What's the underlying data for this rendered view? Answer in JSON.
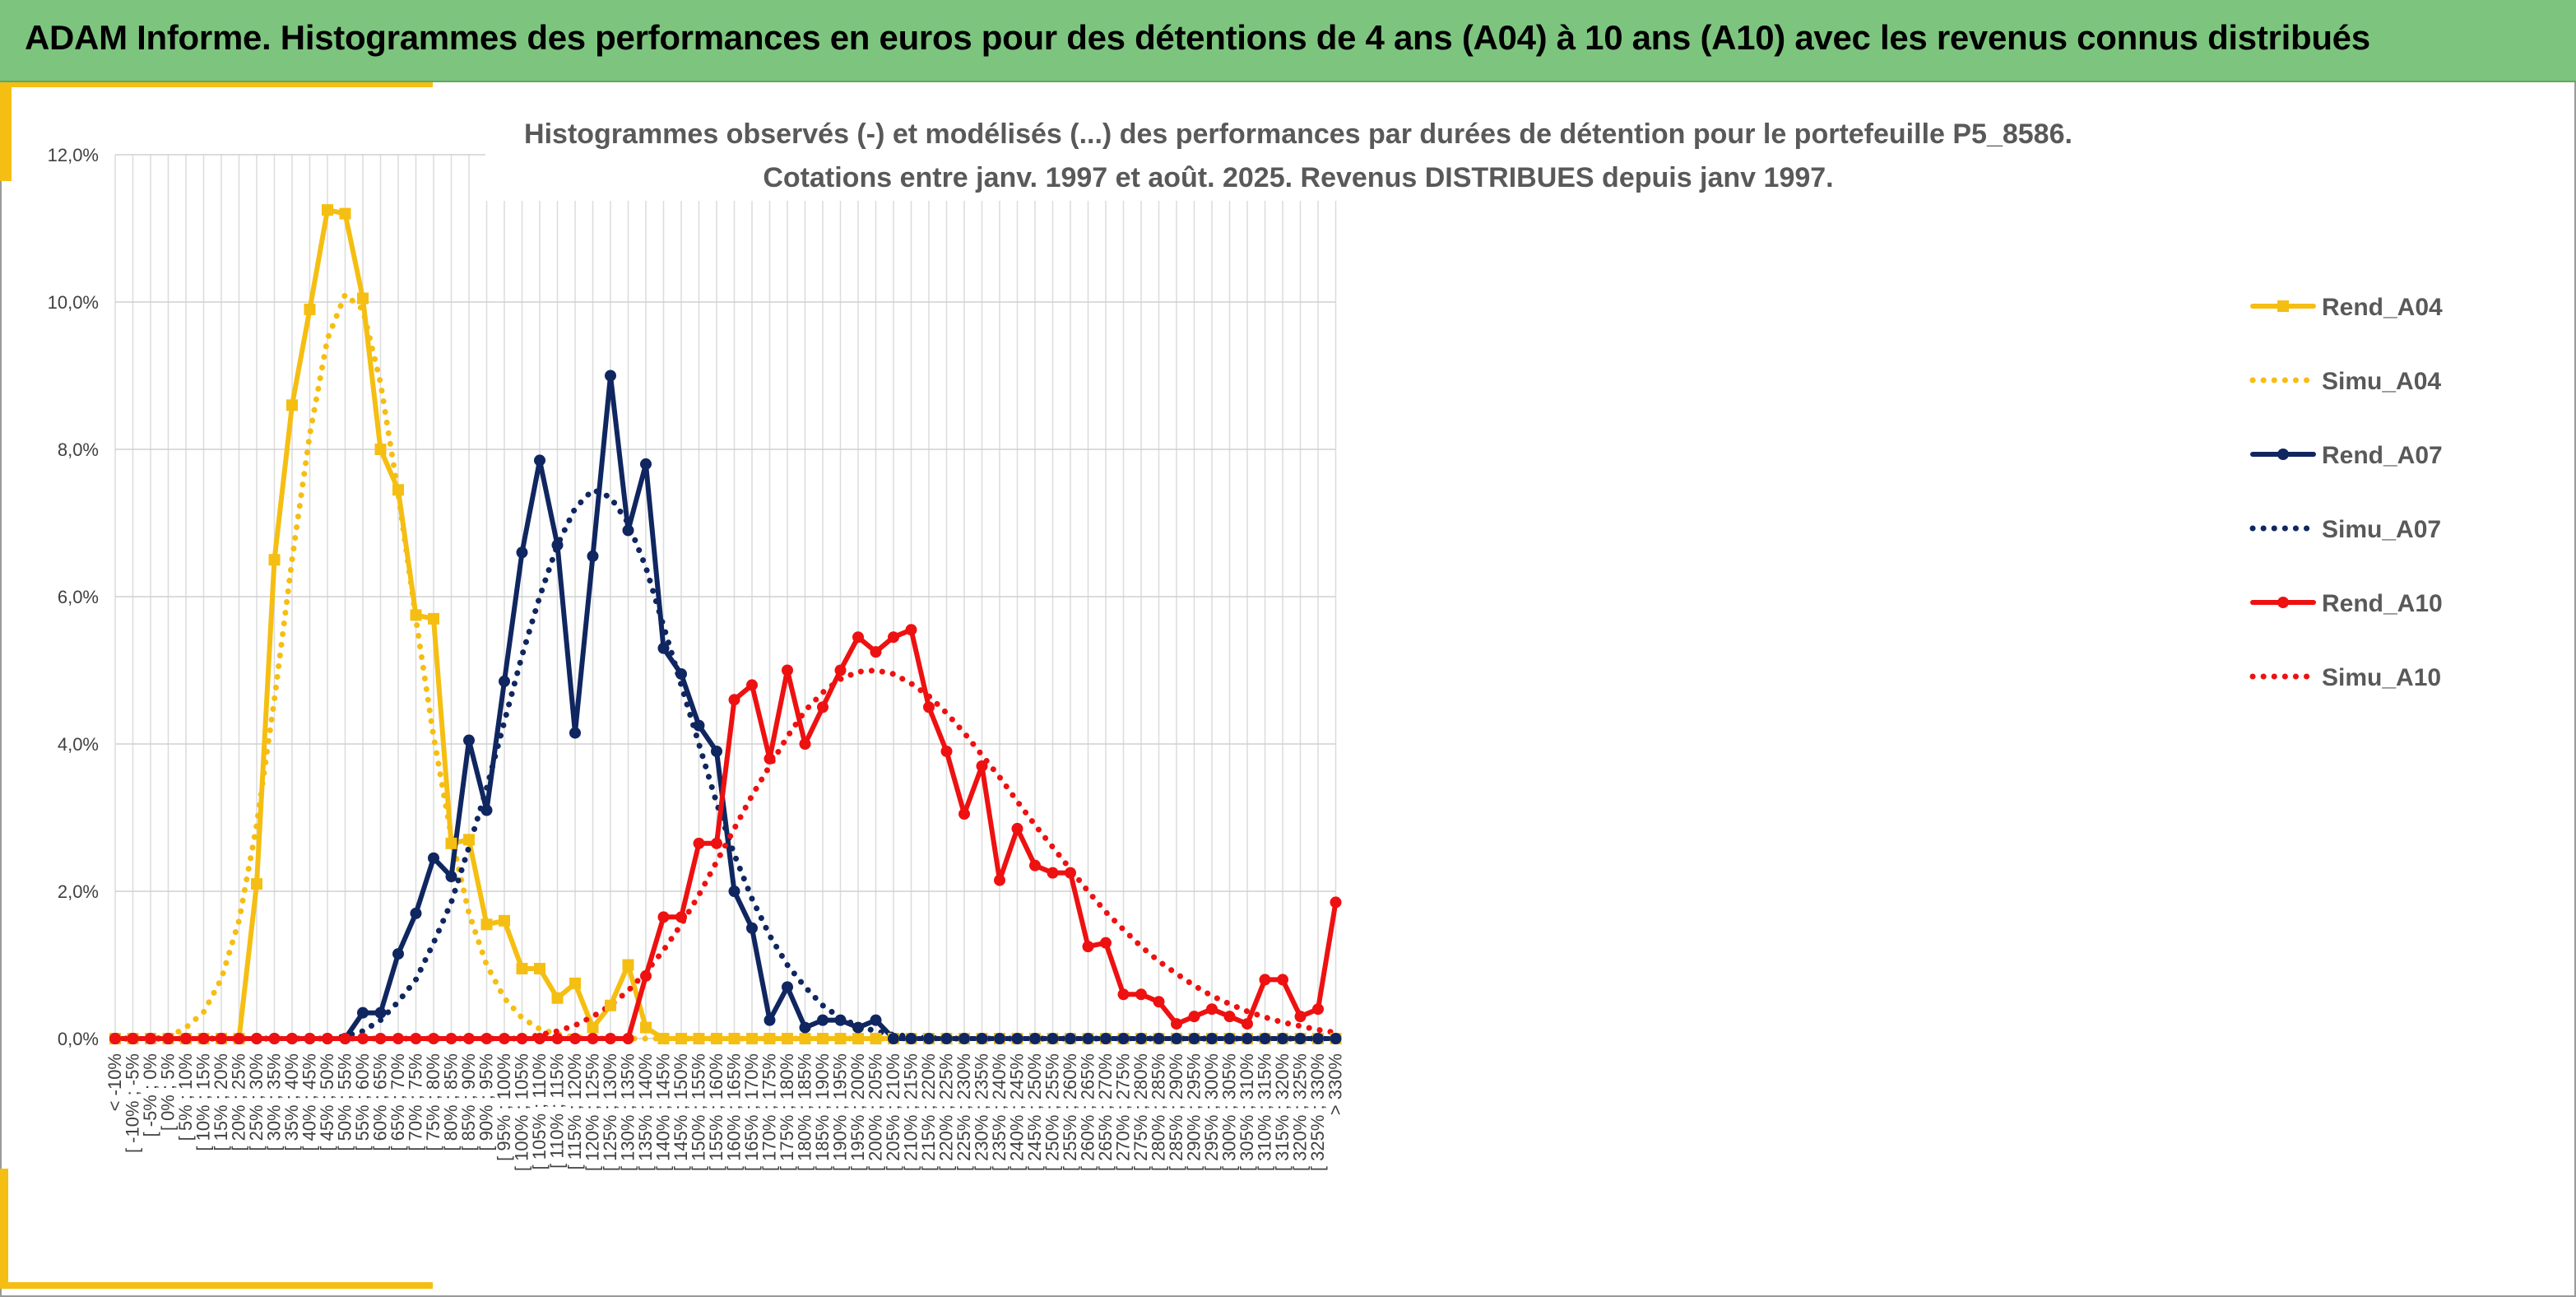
{
  "banner": {
    "title": "ADAM Informe. Histogrammes des performances en euros pour des détentions de 4 ans (A04) à 10 ans (A10) avec les revenus connus distribués",
    "color": "#7DC57F"
  },
  "chart_data": {
    "type": "line",
    "title": "Histogrammes observés (-) et modélisés (...) des performances par durées de détention pour le portefeuille P5_8586.",
    "subtitle": "Cotations entre janv. 1997 et août. 2025. Revenus DISTRIBUES depuis janv 1997.",
    "ylim": [
      0,
      12
    ],
    "yticks": [
      "0,0%",
      "2,0%",
      "4,0%",
      "6,0%",
      "8,0%",
      "10,0%",
      "12,0%"
    ],
    "grid": true,
    "legend_position": "right",
    "categories": [
      "< -10%",
      "[ -10% ; -5%",
      "[ -5% ; 0%",
      "[ 0% ; 5%",
      "[ 5% ; 10%",
      "[ 10% ; 15%",
      "[ 15% ; 20%",
      "[ 20% ; 25%",
      "[ 25% ; 30%",
      "[ 30% ; 35%",
      "[ 35% ; 40%",
      "[ 40% ; 45%",
      "[ 45% ; 50%",
      "[ 50% ; 55%",
      "[ 55% ; 60%",
      "[ 60% ; 65%",
      "[ 65% ; 70%",
      "[ 70% ; 75%",
      "[ 75% ; 80%",
      "[ 80% ; 85%",
      "[ 85% ; 90%",
      "[ 90% ; 95%",
      "[ 95% ; 100%",
      "[ 100% ; 105%",
      "[ 105% ; 110%",
      "[ 110% ; 115%",
      "[ 115% ; 120%",
      "[ 120% ; 125%",
      "[ 125% ; 130%",
      "[ 130% ; 135%",
      "[ 135% ; 140%",
      "[ 140% ; 145%",
      "[ 145% ; 150%",
      "[ 150% ; 155%",
      "[ 155% ; 160%",
      "[ 160% ; 165%",
      "[ 165% ; 170%",
      "[ 170% ; 175%",
      "[ 175% ; 180%",
      "[ 180% ; 185%",
      "[ 185% ; 190%",
      "[ 190% ; 195%",
      "[ 195% ; 200%",
      "[ 200% ; 205%",
      "[ 205% ; 210%",
      "[ 210% ; 215%",
      "[ 215% ; 220%",
      "[ 220% ; 225%",
      "[ 225% ; 230%",
      "[ 230% ; 235%",
      "[ 235% ; 240%",
      "[ 240% ; 245%",
      "[ 245% ; 250%",
      "[ 250% ; 255%",
      "[ 255% ; 260%",
      "[ 260% ; 265%",
      "[ 265% ; 270%",
      "[ 270% ; 275%",
      "[ 275% ; 280%",
      "[ 280% ; 285%",
      "[ 285% ; 290%",
      "[ 290% ; 295%",
      "[ 295% ; 300%",
      "[ 300% ; 305%",
      "[ 305% ; 310%",
      "[ 310% ; 315%",
      "[ 315% ; 320%",
      "[ 320% ; 325%",
      "[ 325% ; 330%",
      "> 330%"
    ],
    "series": [
      {
        "name": "Rend_A04",
        "color": "#F5BE12",
        "style": "solid",
        "marker": "square",
        "values": [
          0,
          0,
          0,
          0,
          0,
          0,
          0,
          0,
          2.1,
          6.5,
          8.6,
          9.9,
          11.25,
          11.2,
          10.05,
          8.0,
          7.45,
          5.75,
          5.7,
          2.65,
          2.7,
          1.55,
          1.6,
          0.95,
          0.95,
          0.55,
          0.75,
          0.15,
          0.45,
          1.0,
          0.15,
          0,
          0,
          0,
          0,
          0,
          0,
          0,
          0,
          0,
          0,
          0,
          0,
          0,
          0,
          0,
          0,
          0,
          0,
          0,
          0,
          0,
          0,
          0,
          0,
          0,
          0,
          0,
          0,
          0,
          0,
          0,
          0,
          0,
          0,
          0,
          0,
          0,
          0,
          0
        ]
      },
      {
        "name": "Simu_A04",
        "color": "#F5BE12",
        "style": "dotted",
        "values": [
          0,
          0,
          0,
          0.02,
          0.15,
          0.36,
          0.81,
          1.6,
          2.9,
          4.6,
          6.5,
          8.2,
          9.5,
          10.1,
          9.9,
          8.9,
          7.4,
          5.7,
          4.1,
          2.75,
          1.7,
          1.0,
          0.55,
          0.28,
          0.13,
          0.06,
          0.02,
          0.01,
          0,
          0,
          0,
          0,
          0,
          0,
          0,
          0,
          0,
          0,
          0,
          0,
          0,
          0,
          0,
          0,
          0,
          0,
          0,
          0,
          0,
          0,
          0,
          0,
          0,
          0,
          0,
          0,
          0,
          0,
          0,
          0,
          0,
          0,
          0,
          0,
          0,
          0,
          0,
          0,
          0,
          0
        ]
      },
      {
        "name": "Rend_A07",
        "color": "#102660",
        "style": "solid",
        "marker": "circle",
        "values": [
          0,
          0,
          0,
          0,
          0,
          0,
          0,
          0,
          0,
          0,
          0,
          0,
          0,
          0,
          0.35,
          0.35,
          1.15,
          1.7,
          2.45,
          2.2,
          4.05,
          3.1,
          4.85,
          6.6,
          7.85,
          6.7,
          4.15,
          6.55,
          9.0,
          6.9,
          7.8,
          5.3,
          4.95,
          4.25,
          3.9,
          2.0,
          1.5,
          0.25,
          0.7,
          0.15,
          0.25,
          0.25,
          0.15,
          0.25,
          0,
          0,
          0,
          0,
          0,
          0,
          0,
          0,
          0,
          0,
          0,
          0,
          0,
          0,
          0,
          0,
          0,
          0,
          0,
          0,
          0,
          0,
          0,
          0,
          0,
          0
        ]
      },
      {
        "name": "Simu_A07",
        "color": "#102660",
        "style": "dotted",
        "values": [
          0,
          0,
          0,
          0,
          0,
          0,
          0,
          0,
          0,
          0,
          0,
          0,
          0,
          0.03,
          0.1,
          0.25,
          0.5,
          0.8,
          1.3,
          1.85,
          2.6,
          3.4,
          4.3,
          5.2,
          6.0,
          6.7,
          7.2,
          7.45,
          7.35,
          7.0,
          6.4,
          5.6,
          4.8,
          4.0,
          3.2,
          2.5,
          1.9,
          1.4,
          1.0,
          0.7,
          0.45,
          0.28,
          0.17,
          0.1,
          0.05,
          0.03,
          0.01,
          0,
          0,
          0,
          0,
          0,
          0,
          0,
          0,
          0,
          0,
          0,
          0,
          0,
          0,
          0,
          0,
          0,
          0,
          0,
          0,
          0,
          0,
          0
        ]
      },
      {
        "name": "Rend_A10",
        "color": "#EE1111",
        "style": "solid",
        "marker": "circle",
        "values": [
          0,
          0,
          0,
          0,
          0,
          0,
          0,
          0,
          0,
          0,
          0,
          0,
          0,
          0,
          0,
          0,
          0,
          0,
          0,
          0,
          0,
          0,
          0,
          0,
          0,
          0,
          0,
          0,
          0,
          0,
          0.85,
          1.65,
          1.65,
          2.65,
          2.65,
          4.6,
          4.8,
          3.8,
          5.0,
          4.0,
          4.5,
          5.0,
          5.45,
          5.25,
          5.45,
          5.55,
          4.5,
          3.9,
          3.05,
          3.7,
          2.15,
          2.85,
          2.35,
          2.25,
          2.25,
          1.25,
          1.3,
          0.6,
          0.6,
          0.5,
          0.2,
          0.3,
          0.4,
          0.3,
          0.2,
          0.8,
          0.8,
          0.3,
          0.4,
          1.85
        ]
      },
      {
        "name": "Simu_A10",
        "color": "#EE1111",
        "style": "dotted",
        "values": [
          0,
          0,
          0,
          0,
          0,
          0,
          0,
          0,
          0,
          0,
          0,
          0,
          0,
          0,
          0,
          0,
          0,
          0,
          0,
          0,
          0,
          0,
          0,
          0,
          0.05,
          0.1,
          0.18,
          0.3,
          0.45,
          0.65,
          0.9,
          1.2,
          1.55,
          1.95,
          2.4,
          2.85,
          3.3,
          3.7,
          4.1,
          4.45,
          4.7,
          4.88,
          4.98,
          5.0,
          4.95,
          4.82,
          4.65,
          4.42,
          4.15,
          3.85,
          3.55,
          3.22,
          2.9,
          2.6,
          2.3,
          2.0,
          1.72,
          1.48,
          1.25,
          1.05,
          0.88,
          0.72,
          0.58,
          0.47,
          0.37,
          0.29,
          0.22,
          0.17,
          0.12,
          0.08
        ]
      }
    ]
  }
}
